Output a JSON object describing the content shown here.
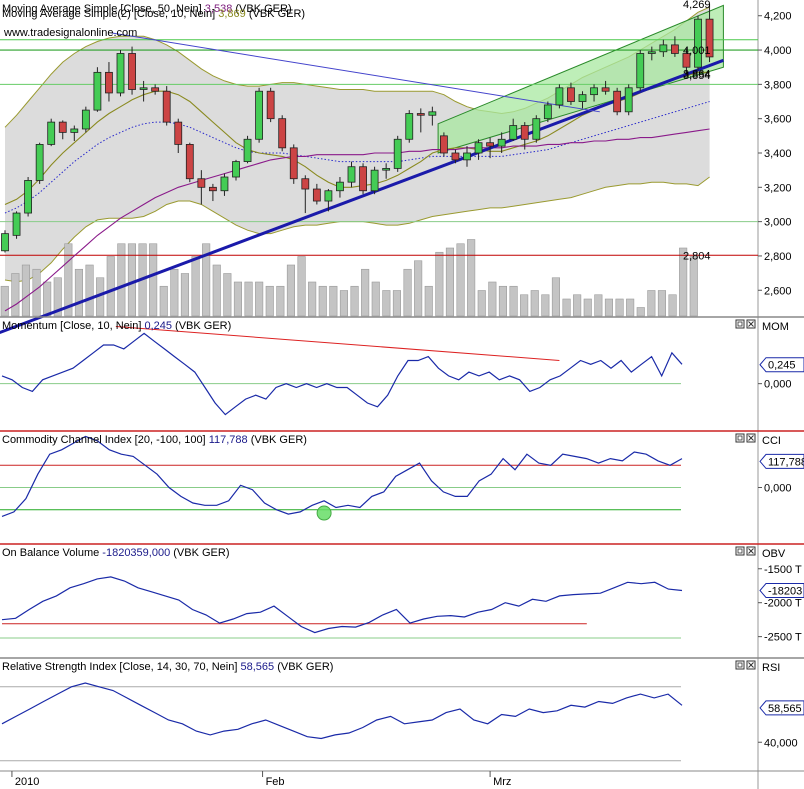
{
  "chart_data": [
    {
      "type": "candlestick",
      "panel": "price",
      "header_lines": [
        {
          "prefix": "Moving Average Simple [Close, 50, Nein] ",
          "value": "3,538",
          "suffix": " (VBK GER)",
          "value_color": "#7a1a7a"
        },
        {
          "prefix": "Moving Average Simple(2) [Close, 10, Nein] ",
          "value": "3,869",
          "suffix": " (VBK GER)",
          "value_color": "#8a8a20"
        }
      ],
      "watermark": "www.tradesignalonline.com",
      "y_ticks": [
        "4,200",
        "4,000",
        "3,800",
        "3,600",
        "3,400",
        "3,200",
        "3,000",
        "2,800",
        "2,600"
      ],
      "y_tick_values": [
        4.2,
        4.0,
        3.8,
        3.6,
        3.4,
        3.2,
        3.0,
        2.8,
        2.6
      ],
      "ylim": [
        2.45,
        4.28
      ],
      "value_labels": [
        {
          "text": "4,269",
          "y": 4.269,
          "color": "#000000"
        },
        {
          "text": "4,001",
          "y": 4.001,
          "color": "#3a8a3a"
        },
        {
          "text": "3,864",
          "y": 3.864,
          "color": "#000000"
        },
        {
          "text": "3,854",
          "y": 3.854,
          "color": "#000000"
        },
        {
          "text": "2,804",
          "y": 2.804,
          "color": "#c00000"
        }
      ],
      "candles": [
        [
          2.83,
          2.95,
          2.82,
          2.93
        ],
        [
          2.92,
          3.06,
          2.9,
          3.05
        ],
        [
          3.05,
          3.26,
          3.03,
          3.24
        ],
        [
          3.24,
          3.46,
          3.22,
          3.45
        ],
        [
          3.45,
          3.6,
          3.44,
          3.58
        ],
        [
          3.58,
          3.59,
          3.48,
          3.52
        ],
        [
          3.52,
          3.56,
          3.47,
          3.54
        ],
        [
          3.54,
          3.67,
          3.52,
          3.65
        ],
        [
          3.65,
          3.9,
          3.64,
          3.87
        ],
        [
          3.87,
          3.93,
          3.7,
          3.75
        ],
        [
          3.75,
          4.0,
          3.73,
          3.98
        ],
        [
          3.98,
          4.02,
          3.74,
          3.77
        ],
        [
          3.77,
          3.82,
          3.7,
          3.78
        ],
        [
          3.78,
          3.8,
          3.74,
          3.76
        ],
        [
          3.76,
          3.79,
          3.56,
          3.58
        ],
        [
          3.58,
          3.6,
          3.4,
          3.45
        ],
        [
          3.45,
          3.46,
          3.23,
          3.25
        ],
        [
          3.25,
          3.3,
          3.1,
          3.2
        ],
        [
          3.2,
          3.22,
          3.12,
          3.18
        ],
        [
          3.18,
          3.28,
          3.15,
          3.26
        ],
        [
          3.26,
          3.36,
          3.24,
          3.35
        ],
        [
          3.35,
          3.5,
          3.34,
          3.48
        ],
        [
          3.48,
          3.78,
          3.46,
          3.76
        ],
        [
          3.76,
          3.78,
          3.58,
          3.6
        ],
        [
          3.6,
          3.62,
          3.41,
          3.43
        ],
        [
          3.43,
          3.45,
          3.22,
          3.25
        ],
        [
          3.25,
          3.27,
          3.05,
          3.19
        ],
        [
          3.19,
          3.22,
          3.1,
          3.12
        ],
        [
          3.12,
          3.19,
          3.06,
          3.18
        ],
        [
          3.18,
          3.26,
          3.14,
          3.23
        ],
        [
          3.23,
          3.35,
          3.2,
          3.32
        ],
        [
          3.32,
          3.34,
          3.16,
          3.18
        ],
        [
          3.18,
          3.32,
          3.16,
          3.3
        ],
        [
          3.3,
          3.34,
          3.25,
          3.31
        ],
        [
          3.31,
          3.5,
          3.29,
          3.48
        ],
        [
          3.48,
          3.65,
          3.46,
          3.63
        ],
        [
          3.63,
          3.66,
          3.52,
          3.62
        ],
        [
          3.62,
          3.67,
          3.56,
          3.64
        ],
        [
          3.5,
          3.52,
          3.38,
          3.4
        ],
        [
          3.4,
          3.42,
          3.34,
          3.36
        ],
        [
          3.36,
          3.44,
          3.32,
          3.4
        ],
        [
          3.4,
          3.48,
          3.36,
          3.46
        ],
        [
          3.46,
          3.49,
          3.37,
          3.44
        ],
        [
          3.44,
          3.52,
          3.4,
          3.48
        ],
        [
          3.48,
          3.6,
          3.47,
          3.56
        ],
        [
          3.56,
          3.58,
          3.42,
          3.48
        ],
        [
          3.48,
          3.62,
          3.46,
          3.6
        ],
        [
          3.6,
          3.7,
          3.58,
          3.68
        ],
        [
          3.68,
          3.8,
          3.66,
          3.78
        ],
        [
          3.78,
          3.81,
          3.68,
          3.7
        ],
        [
          3.7,
          3.76,
          3.66,
          3.74
        ],
        [
          3.74,
          3.8,
          3.7,
          3.78
        ],
        [
          3.78,
          3.82,
          3.74,
          3.76
        ],
        [
          3.76,
          3.78,
          3.62,
          3.64
        ],
        [
          3.64,
          3.8,
          3.62,
          3.78
        ],
        [
          3.78,
          4.0,
          3.76,
          3.98
        ],
        [
          3.98,
          4.02,
          3.94,
          3.99
        ],
        [
          3.99,
          4.06,
          3.96,
          4.03
        ],
        [
          4.03,
          4.08,
          3.96,
          3.98
        ],
        [
          3.98,
          4.01,
          3.86,
          3.9
        ],
        [
          3.9,
          4.2,
          3.88,
          4.18
        ],
        [
          4.18,
          4.27,
          3.93,
          3.96
        ]
      ],
      "volume": [
        0.35,
        0.5,
        0.6,
        0.55,
        0.4,
        0.45,
        0.85,
        0.55,
        0.6,
        0.45,
        0.7,
        0.85,
        0.85,
        0.85,
        0.85,
        0.35,
        0.55,
        0.5,
        0.7,
        0.85,
        0.6,
        0.5,
        0.4,
        0.4,
        0.4,
        0.35,
        0.35,
        0.6,
        0.7,
        0.4,
        0.35,
        0.35,
        0.3,
        0.35,
        0.55,
        0.4,
        0.3,
        0.3,
        0.55,
        0.65,
        0.35,
        0.75,
        0.8,
        0.85,
        0.9,
        0.3,
        0.4,
        0.35,
        0.35,
        0.25,
        0.3,
        0.25,
        0.45,
        0.2,
        0.25,
        0.2,
        0.25,
        0.2,
        0.2,
        0.2,
        0.1,
        0.3,
        0.3,
        0.25,
        0.8,
        0.7,
        0.65,
        0.7,
        0.85,
        0.6,
        0.85
      ],
      "sma50": [
        2.48,
        2.52,
        2.57,
        2.62,
        2.68,
        2.74,
        2.8,
        2.86,
        2.92,
        2.97,
        3.02,
        3.06,
        3.1,
        3.14,
        3.17,
        3.2,
        3.22,
        3.24,
        3.26,
        3.28,
        3.3,
        3.32,
        3.34,
        3.36,
        3.37,
        3.38,
        3.38,
        3.39,
        3.39,
        3.39,
        3.39,
        3.39,
        3.4,
        3.4,
        3.4,
        3.41,
        3.41,
        3.42,
        3.42,
        3.42,
        3.43,
        3.43,
        3.43,
        3.43,
        3.44,
        3.44,
        3.44,
        3.45,
        3.45,
        3.46,
        3.46,
        3.47,
        3.47,
        3.48,
        3.48,
        3.49,
        3.49,
        3.5,
        3.51,
        3.52,
        3.53,
        3.54
      ],
      "sma10": [
        3.1,
        3.13,
        3.18,
        3.25,
        3.33,
        3.4,
        3.46,
        3.52,
        3.58,
        3.63,
        3.67,
        3.71,
        3.74,
        3.76,
        3.76,
        3.74,
        3.7,
        3.64,
        3.58,
        3.52,
        3.46,
        3.42,
        3.4,
        3.39,
        3.38,
        3.36,
        3.32,
        3.27,
        3.23,
        3.2,
        3.2,
        3.21,
        3.22,
        3.24,
        3.27,
        3.31,
        3.35,
        3.4,
        3.42,
        3.43,
        3.43,
        3.42,
        3.41,
        3.41,
        3.43,
        3.45,
        3.47,
        3.5,
        3.54,
        3.58,
        3.62,
        3.65,
        3.68,
        3.7,
        3.72,
        3.75,
        3.78,
        3.81,
        3.83,
        3.85,
        3.87,
        3.87
      ],
      "bb_upper": [
        3.55,
        3.62,
        3.7,
        3.78,
        3.86,
        3.93,
        3.98,
        4.02,
        4.05,
        4.07,
        4.08,
        4.08,
        4.08,
        4.06,
        4.03,
        3.99,
        3.94,
        3.89,
        3.85,
        3.82,
        3.8,
        3.79,
        3.79,
        3.8,
        3.81,
        3.81,
        3.8,
        3.79,
        3.78,
        3.77,
        3.77,
        3.77,
        3.76,
        3.76,
        3.76,
        3.76,
        3.76,
        3.76,
        3.74,
        3.7,
        3.67,
        3.65,
        3.64,
        3.63,
        3.64,
        3.66,
        3.69,
        3.72,
        3.76,
        3.8,
        3.84,
        3.87,
        3.9,
        3.93,
        3.96,
        4.0,
        4.04,
        4.08,
        4.12,
        4.17,
        4.22,
        4.25
      ],
      "bb_lower": [
        2.66,
        2.65,
        2.66,
        2.7,
        2.76,
        2.84,
        2.91,
        2.97,
        3.01,
        3.02,
        3.02,
        3.02,
        3.03,
        3.06,
        3.1,
        3.12,
        3.12,
        3.1,
        3.06,
        3.02,
        2.98,
        2.95,
        2.93,
        2.93,
        2.95,
        2.97,
        2.98,
        2.98,
        2.99,
        3.0,
        3.0,
        3.0,
        2.99,
        2.98,
        2.98,
        2.99,
        3.01,
        3.03,
        3.04,
        3.05,
        3.06,
        3.07,
        3.08,
        3.08,
        3.09,
        3.1,
        3.11,
        3.12,
        3.13,
        3.14,
        3.16,
        3.18,
        3.2,
        3.21,
        3.22,
        3.22,
        3.23,
        3.23,
        3.22,
        3.22,
        3.21,
        3.26
      ],
      "bb_mid_dotted": [
        3.05,
        3.08,
        3.12,
        3.17,
        3.23,
        3.29,
        3.35,
        3.4,
        3.45,
        3.49,
        3.52,
        3.55,
        3.57,
        3.58,
        3.58,
        3.57,
        3.55,
        3.52,
        3.49,
        3.46,
        3.43,
        3.41,
        3.4,
        3.4,
        3.4,
        3.39,
        3.38,
        3.37,
        3.36,
        3.35,
        3.35,
        3.35,
        3.35,
        3.35,
        3.35,
        3.36,
        3.37,
        3.38,
        3.38,
        3.38,
        3.38,
        3.38,
        3.38,
        3.38,
        3.39,
        3.4,
        3.41,
        3.42,
        3.44,
        3.46,
        3.48,
        3.5,
        3.52,
        3.54,
        3.56,
        3.58,
        3.6,
        3.62,
        3.64,
        3.66,
        3.68,
        3.7
      ],
      "hlines": [
        {
          "y": 4.0,
          "color": "#2aa02a",
          "width": 1.2
        },
        {
          "y": 4.06,
          "color": "#4ac84a",
          "width": 1
        },
        {
          "y": 3.8,
          "color": "#66cc66",
          "width": 1
        },
        {
          "y": 3.0,
          "color": "#88cc88",
          "width": 1
        },
        {
          "y": 2.804,
          "color": "#c00000",
          "width": 1
        }
      ],
      "trendlines": [
        {
          "from": [
            -0.6,
            2.35
          ],
          "to": [
            62.2,
            3.94
          ],
          "color": "#1a1aaa",
          "width": 3
        },
        {
          "from": [
            9.2,
            4.1
          ],
          "to": [
            51.5,
            3.64
          ],
          "color": "#4444cc",
          "width": 1
        }
      ],
      "channel": {
        "lower": [
          [
            37.5,
            3.4
          ],
          [
            62.2,
            3.9
          ]
        ],
        "upper": [
          [
            37.5,
            3.57
          ],
          [
            62.2,
            4.26
          ]
        ],
        "fill": "#a8e8a0",
        "stroke": "#2a8a2a"
      }
    },
    {
      "type": "line",
      "panel": "momentum",
      "header": {
        "prefix": "Momentum [Close, 10, Nein] ",
        "value": "0,245",
        "suffix": " (VBK GER)",
        "value_color": "#1a1a8a"
      },
      "tag": "MOM",
      "y_ticks": [
        "0,000"
      ],
      "y_tick_values": [
        0
      ],
      "ylim": [
        -0.6,
        0.85
      ],
      "value_label": {
        "text": "0,245",
        "y": 0.245
      },
      "values": [
        0.1,
        0.05,
        -0.05,
        -0.1,
        0.05,
        0.1,
        0.15,
        0.2,
        0.3,
        0.4,
        0.5,
        0.5,
        0.45,
        0.55,
        0.65,
        0.55,
        0.45,
        0.35,
        0.25,
        0.15,
        -0.05,
        -0.25,
        -0.4,
        -0.3,
        -0.2,
        -0.15,
        -0.2,
        -0.05,
        0.0,
        -0.05,
        0.0,
        -0.05,
        0.0,
        -0.05,
        -0.05,
        -0.15,
        -0.25,
        -0.3,
        -0.15,
        0.1,
        0.3,
        0.3,
        0.35,
        0.2,
        0.1,
        0.05,
        0.15,
        0.1,
        0.15,
        0.05,
        0.1,
        0.05,
        -0.1,
        -0.05,
        0.05,
        0.1,
        0.2,
        0.3,
        0.25,
        0.3,
        0.2,
        0.3,
        0.15,
        0.25,
        0.35,
        0.1,
        0.4,
        0.25
      ],
      "trendline": {
        "from": [
          9.6,
          0.74
        ],
        "to": [
          48,
          0.3
        ],
        "color": "#dd2222"
      },
      "hlines": [
        {
          "y": 0.0,
          "color": "#88cc88"
        }
      ]
    },
    {
      "type": "line",
      "panel": "cci",
      "header": {
        "prefix": "Commodity Channel Index [20, -100, 100] ",
        "value": "117,788",
        "suffix": " (VBK GER)",
        "value_color": "#1a1a8a"
      },
      "tag": "CCI",
      "y_ticks": [
        "0,000"
      ],
      "y_tick_values": [
        0
      ],
      "ylim": [
        -250,
        250
      ],
      "value_label": {
        "text": "117,788",
        "y": 117.788
      },
      "values": [
        -130,
        -110,
        -50,
        60,
        150,
        170,
        200,
        230,
        210,
        170,
        150,
        140,
        100,
        60,
        0,
        -40,
        -70,
        -80,
        -80,
        -60,
        10,
        -10,
        -70,
        -100,
        -120,
        -110,
        -80,
        -60,
        -90,
        -80,
        -90,
        -40,
        -20,
        50,
        80,
        110,
        30,
        -20,
        -40,
        -40,
        30,
        60,
        130,
        80,
        150,
        110,
        100,
        150,
        140,
        130,
        110,
        130,
        120,
        160,
        150,
        120,
        100,
        130
      ],
      "marker": {
        "index": 27,
        "y": -115,
        "color": "#66dd66"
      },
      "hlines": [
        {
          "y": 100,
          "color": "#cc2222"
        },
        {
          "y": 0,
          "color": "#88cc88"
        },
        {
          "y": -100,
          "color": "#22aa22"
        }
      ]
    },
    {
      "type": "line",
      "panel": "obv",
      "header": {
        "prefix": "On Balance Volume ",
        "value": "-1820359,000",
        "suffix": " (VBK GER)",
        "value_color": "#1a1a8a"
      },
      "tag": "OBV",
      "y_ticks": [
        "-1500 T",
        "-2000 T",
        "-2500 T"
      ],
      "y_tick_values": [
        -1500,
        -2000,
        -2500
      ],
      "ylim": [
        -2800,
        -1150
      ],
      "value_label": {
        "text": "-18203",
        "y": -1820
      },
      "values": [
        -2250,
        -2230,
        -2100,
        -1980,
        -1900,
        -1780,
        -1720,
        -1650,
        -1620,
        -1680,
        -1780,
        -1840,
        -1900,
        -1960,
        -2100,
        -2180,
        -2300,
        -2240,
        -2160,
        -2140,
        -2050,
        -2200,
        -2350,
        -2440,
        -2380,
        -2350,
        -2360,
        -2290,
        -2180,
        -2100,
        -2300,
        -2240,
        -2200,
        -2190,
        -2210,
        -2140,
        -2100,
        -2000,
        -2050,
        -1950,
        -1980,
        -1900,
        -1880,
        -1870,
        -1860,
        -1780,
        -1700,
        -1720,
        -1700,
        -1800,
        -1820
      ],
      "hlines": [
        {
          "y": -2310,
          "color": "#cc2222",
          "from": 0,
          "to": 43
        },
        {
          "y": -2520,
          "color": "#88cc88"
        }
      ]
    },
    {
      "type": "line",
      "panel": "rsi",
      "header": {
        "prefix": "Relative Strength Index [Close, 14, 30, 70, Nein] ",
        "value": "58,565",
        "suffix": " (VBK GER)",
        "value_color": "#1a1a8a"
      },
      "tag": "RSI",
      "y_ticks": [
        "40,000"
      ],
      "y_tick_values": [
        40
      ],
      "ylim": [
        25,
        85
      ],
      "value_label": {
        "text": "58,565",
        "y": 58.565
      },
      "values": [
        50,
        54,
        58,
        62,
        66,
        70,
        72,
        70,
        68,
        64,
        60,
        56,
        52,
        50,
        46,
        44,
        46,
        47,
        50,
        52,
        49,
        46,
        43,
        42,
        44,
        45,
        48,
        52,
        54,
        50,
        51,
        52,
        56,
        58,
        52,
        50,
        55,
        54,
        58,
        56,
        57,
        60,
        59,
        62,
        61,
        64,
        66,
        64,
        66,
        60
      ],
      "hlines": [
        {
          "y": 70,
          "color": "#aaaaaa"
        },
        {
          "y": 30,
          "color": "#aaaaaa"
        }
      ]
    }
  ],
  "x_axis": {
    "labels": [
      {
        "text": "2010",
        "pos": 0.6
      },
      {
        "text": "Feb",
        "pos": 22.3
      },
      {
        "text": "Mrz",
        "pos": 42.0
      }
    ],
    "n_bars": 62
  }
}
